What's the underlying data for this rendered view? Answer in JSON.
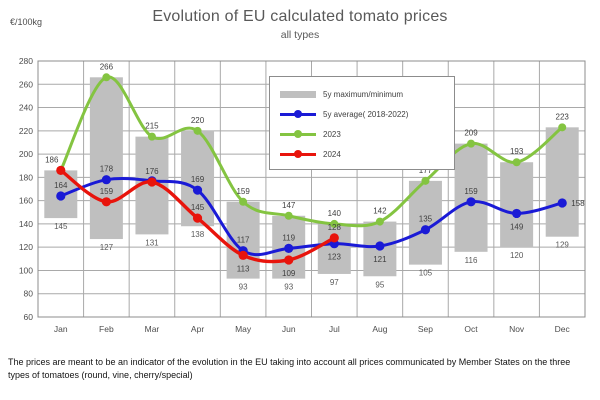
{
  "header": {
    "units": "€/100kg",
    "title": "Evolution of EU calculated tomato prices",
    "subtitle": "all types"
  },
  "legend": {
    "items": [
      {
        "label": "5y maximum/minimum",
        "type": "bar",
        "color": "#bfbfbf"
      },
      {
        "label": "5y average( 2018-2022)",
        "type": "line",
        "color": "#1a1ad6"
      },
      {
        "label": "2023",
        "type": "line",
        "color": "#84c441"
      },
      {
        "label": "2024",
        "type": "line",
        "color": "#e8140c"
      }
    ]
  },
  "footnote": "The prices are meant to be an indicator of the evolution in the EU taking into account all prices communicated by Member States on the three types of tomatoes (round, vine, cherry/special)",
  "chart_data": {
    "type": "combo",
    "title": "Evolution of EU calculated tomato prices",
    "subtitle": "all types",
    "ylabel": "€/100kg",
    "categories": [
      "Jan",
      "Feb",
      "Mar",
      "Apr",
      "May",
      "Jun",
      "Jul",
      "Aug",
      "Sep",
      "Oct",
      "Nov",
      "Dec"
    ],
    "y_axis": {
      "min": 60,
      "max": 280,
      "step": 20
    },
    "grid": true,
    "legend_position": "inside-top",
    "bars": {
      "name": "5y maximum/minimum",
      "color": "#bfbfbf",
      "min": [
        145,
        127,
        131,
        138,
        93,
        93,
        97,
        95,
        105,
        116,
        120,
        129
      ],
      "max": [
        186,
        266,
        215,
        220,
        159,
        147,
        140,
        142,
        177,
        209,
        193,
        223
      ]
    },
    "series": [
      {
        "name": "5y average( 2018-2022)",
        "type": "line",
        "color": "#1a1ad6",
        "values": [
          164,
          178,
          177,
          169,
          117,
          119,
          123,
          121,
          135,
          159,
          149,
          158
        ],
        "labels": [
          164,
          178,
          null,
          169,
          117,
          119,
          123,
          121,
          135,
          159,
          149,
          158
        ]
      },
      {
        "name": "2023",
        "type": "line",
        "color": "#84c441",
        "values": [
          186,
          266,
          215,
          220,
          159,
          147,
          140,
          142,
          177,
          209,
          193,
          223
        ],
        "labels": [
          null,
          266,
          215,
          220,
          159,
          147,
          140,
          142,
          177,
          209,
          193,
          223
        ]
      },
      {
        "name": "2024",
        "type": "line",
        "color": "#e8140c",
        "values": [
          186,
          159,
          176,
          145,
          113,
          109,
          128
        ],
        "labels": [
          186,
          159,
          176,
          145,
          113,
          109,
          128
        ]
      }
    ]
  }
}
